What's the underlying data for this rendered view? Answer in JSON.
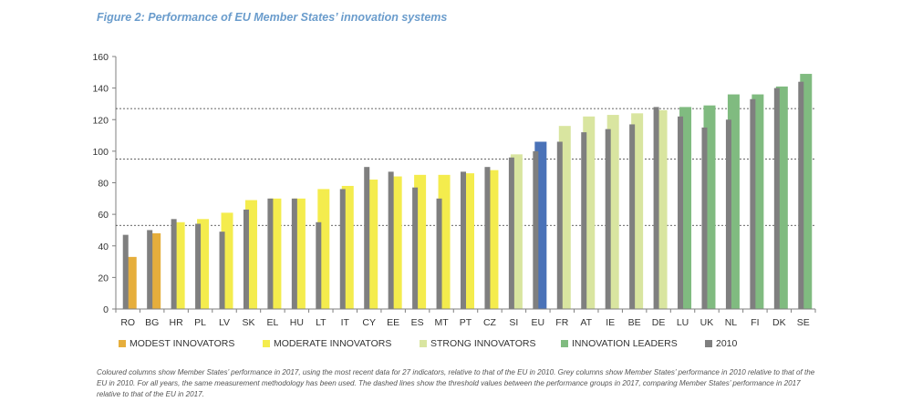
{
  "figure": {
    "title": "Figure 2: Performance of EU Member States’ innovation systems",
    "note": "Coloured columns show Member States’ performance in 2017, using the most recent data for 27 indicators, relative to that of the EU in 2010. Grey columns show Member States’ performance in 2010 relative to that of the EU in 2010. For all years, the same measurement methodology has been used. The dashed lines show the threshold values between the performance groups in 2017, comparing Member States’ performance in 2017 relative to that of the EU in 2017."
  },
  "legend": [
    {
      "label": "MODEST INNOVATORS",
      "color": "#e6ae3c"
    },
    {
      "label": "MODERATE INNOVATORS",
      "color": "#f4ec4d"
    },
    {
      "label": "STRONG INNOVATORS",
      "color": "#d9e5a0"
    },
    {
      "label": "INNOVATION LEADERS",
      "color": "#80bb80"
    },
    {
      "label": "2010",
      "color": "#7f7f7f"
    }
  ],
  "chart_data": {
    "type": "bar",
    "title": "Figure 2: Performance of EU Member States’ innovation systems",
    "categories": [
      "RO",
      "BG",
      "HR",
      "PL",
      "LV",
      "SK",
      "EL",
      "HU",
      "LT",
      "IT",
      "CY",
      "EE",
      "ES",
      "MT",
      "PT",
      "CZ",
      "SI",
      "EU",
      "FR",
      "AT",
      "IE",
      "BE",
      "DE",
      "LU",
      "UK",
      "NL",
      "FI",
      "DK",
      "SE"
    ],
    "series": [
      {
        "name": "2010",
        "color": "#7f7f7f",
        "values": [
          47,
          50,
          57,
          54,
          49,
          63,
          70,
          70,
          55,
          76,
          90,
          87,
          77,
          70,
          87,
          90,
          96,
          100,
          106,
          112,
          114,
          117,
          128,
          122,
          115,
          120,
          133,
          140,
          144
        ]
      },
      {
        "name": "2017",
        "values": [
          33,
          48,
          55,
          57,
          61,
          69,
          70,
          70,
          76,
          78,
          82,
          84,
          85,
          85,
          86,
          88,
          98,
          106,
          116,
          122,
          123,
          124,
          126,
          128,
          129,
          136,
          136,
          141,
          149
        ],
        "groups": [
          "modest",
          "modest",
          "moderate",
          "moderate",
          "moderate",
          "moderate",
          "moderate",
          "moderate",
          "moderate",
          "moderate",
          "moderate",
          "moderate",
          "moderate",
          "moderate",
          "moderate",
          "moderate",
          "strong",
          "eu",
          "strong",
          "strong",
          "strong",
          "strong",
          "strong",
          "leader",
          "leader",
          "leader",
          "leader",
          "leader",
          "leader"
        ]
      }
    ],
    "group_colors": {
      "modest": "#e6ae3c",
      "moderate": "#f4ec4d",
      "strong": "#d9e5a0",
      "leader": "#80bb80",
      "eu": "#4a72b8"
    },
    "thresholds": [
      53,
      95,
      127
    ],
    "ylim": [
      0,
      160
    ],
    "yticks": [
      0,
      20,
      40,
      60,
      80,
      100,
      120,
      140,
      160
    ],
    "xlabel": "",
    "ylabel": "",
    "grid": false,
    "legend_position": "bottom"
  }
}
